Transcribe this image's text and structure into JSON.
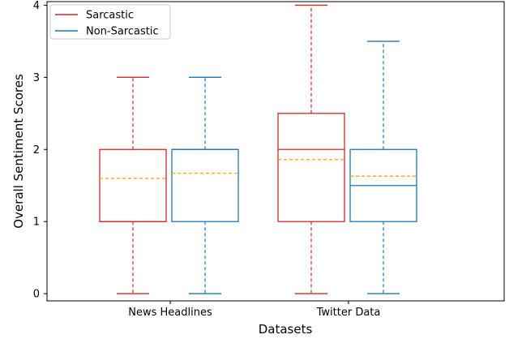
{
  "chart_data": {
    "type": "boxplot",
    "title": "",
    "xlabel": "Datasets",
    "ylabel": "Overall Sentiment Scores",
    "categories": [
      "News Headlines",
      "Twitter Data"
    ],
    "ylim": [
      -0.1,
      4.05
    ],
    "yticks": [
      "0",
      "1",
      "2",
      "3",
      "4"
    ],
    "legend_position": "top-left",
    "mean_line_style": "dashed orange",
    "mean_color": "#ffa500",
    "series": [
      {
        "name": "Sarcastic",
        "color": "#d62728",
        "boxes": [
          {
            "category": "News Headlines",
            "whisker_low": 0,
            "q1": 1,
            "median": 1,
            "mean": 1.6,
            "q3": 2,
            "whisker_high": 3
          },
          {
            "category": "Twitter Data",
            "whisker_low": 0,
            "q1": 1,
            "median": 2,
            "mean": 1.86,
            "q3": 2.5,
            "whisker_high": 4
          }
        ]
      },
      {
        "name": "Non-Sarcastic",
        "color": "#1f77b4",
        "boxes": [
          {
            "category": "News Headlines",
            "whisker_low": 0,
            "q1": 1,
            "median": 2,
            "mean": 1.67,
            "q3": 2,
            "whisker_high": 3
          },
          {
            "category": "Twitter Data",
            "whisker_low": 0,
            "q1": 1,
            "median": 1.5,
            "mean": 1.63,
            "q3": 2,
            "whisker_high": 3.5
          }
        ]
      }
    ]
  }
}
